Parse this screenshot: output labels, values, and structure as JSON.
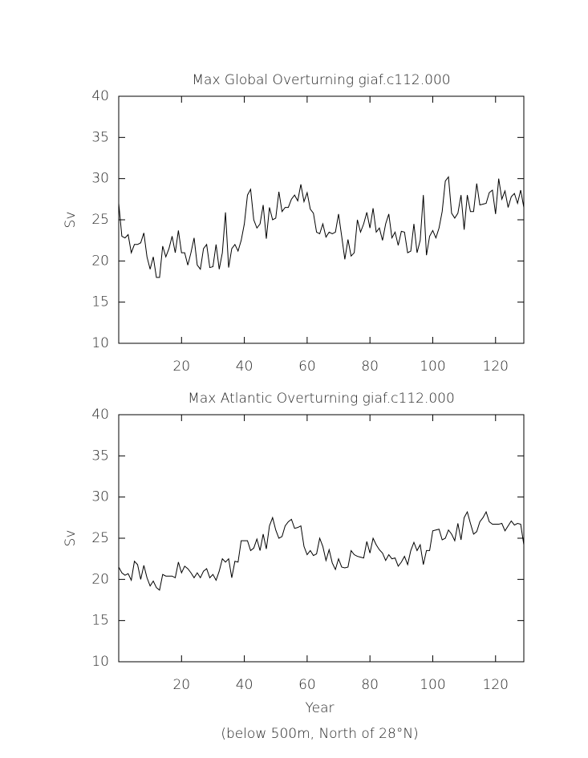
{
  "chart_data": [
    {
      "type": "line",
      "title": "Max Global Overturning giaf.c112.000",
      "ylabel": "Sv",
      "xlim": [
        0,
        129
      ],
      "xticks": [
        20,
        40,
        60,
        80,
        100,
        120
      ],
      "ylim": [
        10,
        40
      ],
      "yticks": [
        10,
        15,
        20,
        25,
        30,
        35,
        40
      ],
      "x": [
        0,
        1,
        2,
        3,
        4,
        5,
        6,
        7,
        8,
        9,
        10,
        11,
        12,
        13,
        14,
        15,
        16,
        17,
        18,
        19,
        20,
        21,
        22,
        23,
        24,
        25,
        26,
        27,
        28,
        29,
        30,
        31,
        32,
        33,
        34,
        35,
        36,
        37,
        38,
        39,
        40,
        41,
        42,
        43,
        44,
        45,
        46,
        47,
        48,
        49,
        50,
        51,
        52,
        53,
        54,
        55,
        56,
        57,
        58,
        59,
        60,
        61,
        62,
        63,
        64,
        65,
        66,
        67,
        68,
        69,
        70,
        71,
        72,
        73,
        74,
        75,
        76,
        77,
        78,
        79,
        80,
        81,
        82,
        83,
        84,
        85,
        86,
        87,
        88,
        89,
        90,
        91,
        92,
        93,
        94,
        95,
        96,
        97,
        98,
        99,
        100,
        101,
        102,
        103,
        104,
        105,
        106,
        107,
        108,
        109,
        110,
        111,
        112,
        113,
        114,
        115,
        116,
        117,
        118,
        119,
        120,
        121,
        122,
        123,
        124,
        125,
        126,
        127,
        128,
        129
      ],
      "series": [
        {
          "color": "#000000",
          "values": [
            27,
            23,
            22.8,
            23.2,
            21,
            22,
            22,
            22.2,
            23.4,
            20.5,
            19,
            20.5,
            18,
            18,
            21.8,
            20.5,
            21.5,
            23,
            21,
            23.7,
            21,
            21,
            19.5,
            21,
            22.8,
            19.5,
            19,
            21.5,
            22,
            19.2,
            19.3,
            22,
            19,
            21,
            25.9,
            19.2,
            21.5,
            22,
            21.2,
            22.5,
            24.5,
            28,
            28.7,
            25,
            24,
            24.5,
            26.8,
            22.7,
            26.5,
            25,
            25.2,
            28.4,
            26,
            26.5,
            26.5,
            27.5,
            28,
            27.3,
            29.3,
            27.2,
            28.3,
            26.3,
            25.8,
            23.5,
            23.3,
            24.5,
            22.9,
            23.5,
            23.3,
            23.5,
            25.7,
            23,
            20.2,
            22.6,
            20.6,
            21,
            25,
            23.5,
            24.5,
            25.9,
            24,
            26.4,
            23.5,
            24,
            22.5,
            24.5,
            25.7,
            22.8,
            23.5,
            21.9,
            23.6,
            23.5,
            21,
            21.2,
            24.5,
            21,
            22.5,
            28,
            20.7,
            23,
            23.7,
            22.8,
            24,
            26,
            29.7,
            30.2,
            25.8,
            25.2,
            25.8,
            28,
            23.8,
            28,
            26,
            26,
            29.4,
            26.8,
            26.9,
            27,
            28.3,
            28.6,
            25.7,
            30,
            27.5,
            28.5,
            26.5,
            27.8,
            28.2,
            27,
            28.6,
            26.5
          ]
        }
      ]
    },
    {
      "type": "line",
      "title": "Max Atlantic Overturning giaf.c112.000",
      "ylabel": "Sv",
      "xlabel": "Year",
      "note": "(below 500m, North of 28°N)",
      "xlim": [
        0,
        129
      ],
      "xticks": [
        20,
        40,
        60,
        80,
        100,
        120
      ],
      "ylim": [
        10,
        40
      ],
      "yticks": [
        10,
        15,
        20,
        25,
        30,
        35,
        40
      ],
      "x": [
        0,
        1,
        2,
        3,
        4,
        5,
        6,
        7,
        8,
        9,
        10,
        11,
        12,
        13,
        14,
        15,
        16,
        17,
        18,
        19,
        20,
        21,
        22,
        23,
        24,
        25,
        26,
        27,
        28,
        29,
        30,
        31,
        32,
        33,
        34,
        35,
        36,
        37,
        38,
        39,
        40,
        41,
        42,
        43,
        44,
        45,
        46,
        47,
        48,
        49,
        50,
        51,
        52,
        53,
        54,
        55,
        56,
        57,
        58,
        59,
        60,
        61,
        62,
        63,
        64,
        65,
        66,
        67,
        68,
        69,
        70,
        71,
        72,
        73,
        74,
        75,
        76,
        77,
        78,
        79,
        80,
        81,
        82,
        83,
        84,
        85,
        86,
        87,
        88,
        89,
        90,
        91,
        92,
        93,
        94,
        95,
        96,
        97,
        98,
        99,
        100,
        101,
        102,
        103,
        104,
        105,
        106,
        107,
        108,
        109,
        110,
        111,
        112,
        113,
        114,
        115,
        116,
        117,
        118,
        119,
        120,
        121,
        122,
        123,
        124,
        125,
        126,
        127,
        128,
        129
      ],
      "series": [
        {
          "color": "#000000",
          "values": [
            21.5,
            20.8,
            20.5,
            20.7,
            19.9,
            22.2,
            21.8,
            20,
            21.7,
            20.2,
            19.2,
            19.8,
            19,
            18.7,
            20.6,
            20.4,
            20.4,
            20.4,
            20.2,
            22.1,
            20.8,
            21.6,
            21.3,
            20.8,
            20.2,
            20.8,
            20.2,
            21,
            21.3,
            20.2,
            20.6,
            19.9,
            21,
            22.5,
            22.1,
            22.5,
            20.2,
            22.2,
            22.1,
            24.7,
            24.7,
            24.7,
            23.5,
            23.8,
            24.9,
            23.5,
            25.5,
            23.7,
            26.5,
            27.5,
            26,
            25,
            25.2,
            26.5,
            27,
            27.3,
            26.2,
            26.3,
            26.5,
            24,
            23,
            23.5,
            22.9,
            23.1,
            25,
            24,
            22.3,
            23.6,
            22,
            21.2,
            22.5,
            21.5,
            21.4,
            21.5,
            23.5,
            23,
            22.8,
            22.7,
            22.6,
            24.6,
            23.2,
            25,
            24.2,
            23.6,
            23.2,
            22.3,
            23,
            22.5,
            22.6,
            21.6,
            22.1,
            22.8,
            21.8,
            23.5,
            24.5,
            23.5,
            24.2,
            21.8,
            23.5,
            23.5,
            25.9,
            26,
            26.1,
            24.8,
            25,
            26,
            25.5,
            24.7,
            26.8,
            24.8,
            27.5,
            28.2,
            26.8,
            25.5,
            25.8,
            27,
            27.5,
            28.2,
            27,
            26.7,
            26.7,
            26.7,
            26.8,
            25.9,
            26.5,
            27.1,
            26.6,
            26.8,
            26.7,
            24.2
          ]
        }
      ]
    }
  ]
}
